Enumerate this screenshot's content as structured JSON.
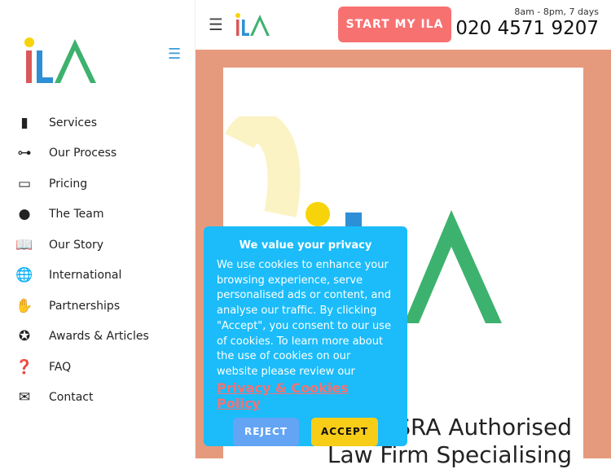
{
  "sidebar": {
    "logo_text": "iLA",
    "items": [
      {
        "label": "Services",
        "icon": "book-icon"
      },
      {
        "label": "Our Process",
        "icon": "sitemap-icon"
      },
      {
        "label": "Pricing",
        "icon": "credit-card-icon"
      },
      {
        "label": "The Team",
        "icon": "user-icon"
      },
      {
        "label": "Our Story",
        "icon": "open-book-icon"
      },
      {
        "label": "International",
        "icon": "globe-icon"
      },
      {
        "label": "Partnerships",
        "icon": "handshake-icon"
      },
      {
        "label": "Awards & Articles",
        "icon": "award-icon"
      },
      {
        "label": "FAQ",
        "icon": "question-circle-icon"
      },
      {
        "label": "Contact",
        "icon": "mail-bulk-icon"
      }
    ]
  },
  "header": {
    "logo_text": "iLA",
    "cta": "START MY ILA",
    "hours": "8am - 8pm, 7 days",
    "phone": "020 4571 9207"
  },
  "hero": {
    "headline_line1": "SRA Authorised",
    "headline_line2": "Law Firm Specialising"
  },
  "cookie": {
    "title": "We value your privacy",
    "body": "We use cookies to enhance your browsing experience, serve personalised ads or content, and analyse our traffic. By clicking \"Accept\", you consent to our use of cookies. To learn more about the use of cookies on our website please review our",
    "link": "Privacy & Cookies Policy",
    "reject": "REJECT",
    "accept": "ACCEPT"
  },
  "colors": {
    "brand_red": "#d9585a",
    "brand_blue": "#2d8fd5",
    "brand_green": "#3db26e",
    "cta": "#f77171",
    "cookie_bg": "#1bbcf9",
    "hero_bg": "#e69a7d"
  }
}
